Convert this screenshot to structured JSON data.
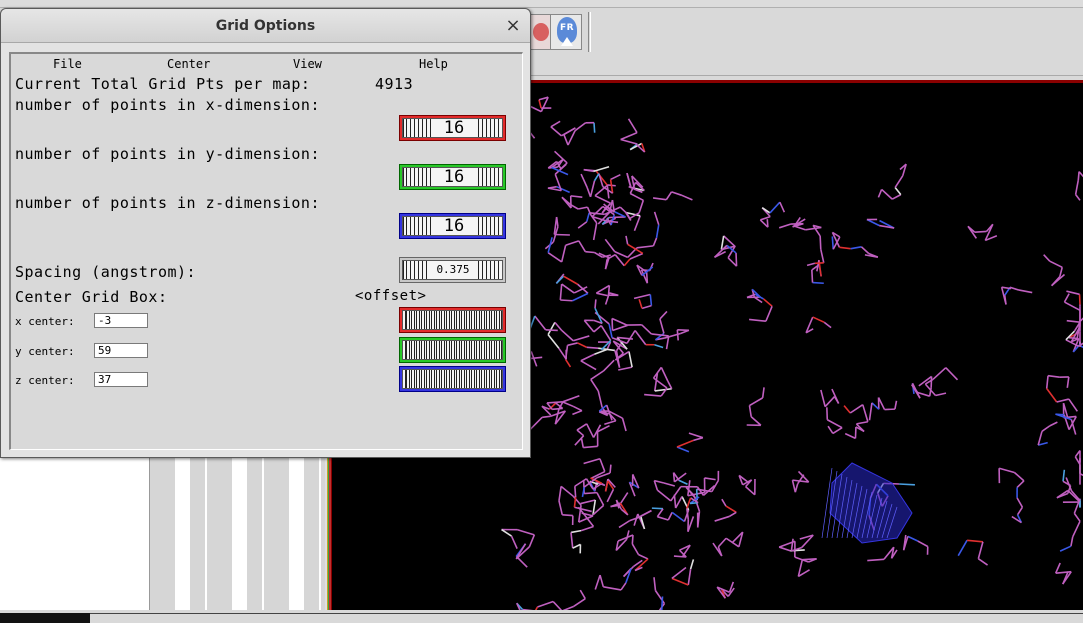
{
  "dialog": {
    "title": "Grid Options",
    "close_glyph": "×",
    "menu": [
      "File",
      "Center",
      "View",
      "Help"
    ],
    "total_label": "Current Total Grid Pts per map:",
    "total_value": "4913",
    "x_points_label": "number of points in x-dimension:",
    "x_points_value": "16",
    "y_points_label": "number of points in y-dimension:",
    "y_points_value": "16",
    "z_points_label": "number of points in z-dimension:",
    "z_points_value": "16",
    "spacing_label": "Spacing (angstrom):",
    "spacing_value": "0.375",
    "center_label": "Center Grid Box:",
    "offset_label": "<offset>",
    "x_center_label": "x center:",
    "x_center_value": "-3",
    "y_center_label": "y center:",
    "y_center_value": "59",
    "z_center_label": "z center:",
    "z_center_value": "37"
  },
  "toolbar": {
    "flood_icon_label": "FR"
  },
  "colors": {
    "x_axis": "#e22b2b",
    "y_axis": "#28c828",
    "z_axis": "#3535e0",
    "viewer_bg": "#000000",
    "protein_bonds": "#c060c0"
  },
  "icons": [
    "close-icon",
    "red-sphere-icon",
    "flood-icon"
  ]
}
